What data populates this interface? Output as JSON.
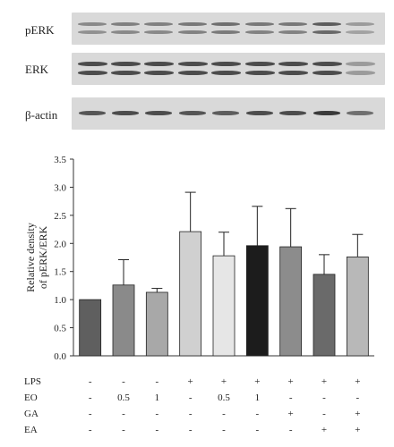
{
  "blots": [
    {
      "label": "pERK"
    },
    {
      "label": "ERK"
    },
    {
      "label": "β-actin"
    }
  ],
  "chart_data": {
    "type": "bar",
    "ylabel_line1": "Relative density",
    "ylabel_line2": "of pERK/ERK",
    "ylim": [
      0.0,
      3.5
    ],
    "yticks": [
      "0.0",
      "0.5",
      "1.0",
      "1.5",
      "2.0",
      "2.5",
      "3.0",
      "3.5"
    ],
    "values": [
      1.0,
      1.26,
      1.13,
      2.21,
      1.78,
      1.96,
      1.94,
      1.45,
      1.76
    ],
    "errors": [
      0.0,
      0.45,
      0.07,
      0.7,
      0.42,
      0.7,
      0.68,
      0.35,
      0.4
    ],
    "colors": [
      "#5f5f5f",
      "#8a8a8a",
      "#a8a8a8",
      "#d0d0d0",
      "#e6e6e6",
      "#1c1c1c",
      "#8c8c8c",
      "#6a6a6a",
      "#b8b8b8"
    ],
    "conditions": [
      {
        "label": "LPS",
        "values": [
          "-",
          "-",
          "-",
          "+",
          "+",
          "+",
          "+",
          "+",
          "+"
        ]
      },
      {
        "label": "EO",
        "values": [
          "-",
          "0.5",
          "1",
          "-",
          "0.5",
          "1",
          "-",
          "-",
          "-"
        ]
      },
      {
        "label": "GA",
        "values": [
          "-",
          "-",
          "-",
          "-",
          "-",
          "-",
          "+",
          "-",
          "+"
        ]
      },
      {
        "label": "EA",
        "values": [
          "-",
          "-",
          "-",
          "-",
          "-",
          "-",
          "-",
          "+",
          "+"
        ]
      }
    ]
  }
}
